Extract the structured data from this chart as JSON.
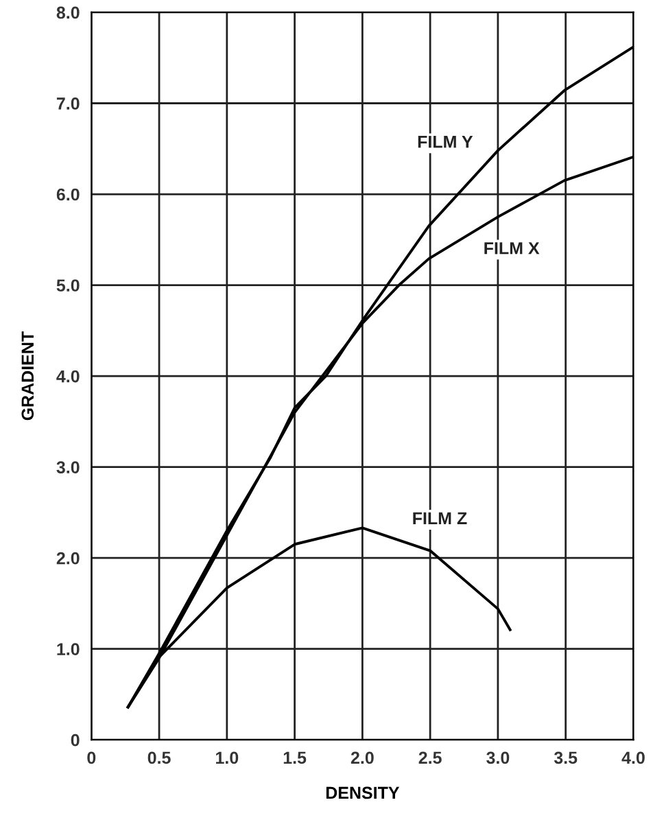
{
  "chart_data": {
    "type": "line",
    "xlabel": "DENSITY",
    "ylabel": "GRADIENT",
    "xlim": [
      0,
      4.0
    ],
    "ylim": [
      0,
      8.0
    ],
    "xticks": [
      0,
      0.5,
      {
        "value": 1,
        "label": "1.0"
      },
      1.5,
      {
        "value": 2,
        "label": "2.0"
      },
      2.5,
      {
        "value": 3,
        "label": "3.0"
      },
      3.5,
      {
        "value": 4,
        "label": "4.0"
      }
    ],
    "yticks": [
      0,
      {
        "value": 1,
        "label": "1.0"
      },
      {
        "value": 2,
        "label": "2.0"
      },
      {
        "value": 3,
        "label": "3.0"
      },
      {
        "value": 4,
        "label": "4.0"
      },
      {
        "value": 5,
        "label": "5.0"
      },
      {
        "value": 6,
        "label": "6.0"
      },
      {
        "value": 7,
        "label": "7.0"
      },
      {
        "value": 8,
        "label": "8.0"
      }
    ],
    "grid": true,
    "marker": "none",
    "line_style": "solid",
    "series": [
      {
        "color": "#000000",
        "x": [
          0.27,
          0.5,
          1.0,
          1.32,
          1.5,
          1.73,
          2.0,
          2.49,
          3.0,
          3.49,
          4.0
        ],
        "values": [
          0.36,
          0.95,
          2.3,
          3.1,
          3.65,
          4.0,
          4.61,
          5.65,
          6.48,
          7.14,
          7.62
        ]
      },
      {
        "color": "#000000",
        "x": [
          0.27,
          0.5,
          1.0,
          1.5,
          2.0,
          2.27,
          2.49,
          3.0,
          3.49,
          4.0
        ],
        "values": [
          0.36,
          0.9,
          2.25,
          3.6,
          4.58,
          5.0,
          5.29,
          5.75,
          6.15,
          6.41
        ]
      },
      {
        "color": "#000000",
        "x": [
          0.27,
          0.5,
          1.0,
          1.5,
          2.0,
          2.5,
          3.0,
          3.09
        ],
        "values": [
          0.36,
          0.91,
          1.67,
          2.15,
          2.33,
          2.08,
          1.44,
          1.21
        ]
      }
    ],
    "annotations": [
      {
        "text": "FILM Y",
        "x": 2.61,
        "y": 6.56
      },
      {
        "text": "FILM X",
        "x": 3.1,
        "y": 5.39
      },
      {
        "text": "FILM Z",
        "x": 2.57,
        "y": 2.42
      }
    ]
  }
}
